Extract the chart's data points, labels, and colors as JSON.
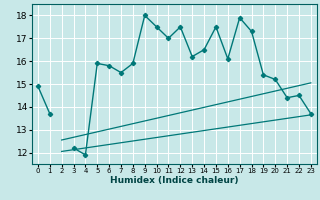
{
  "title": "",
  "xlabel": "Humidex (Indice chaleur)",
  "bg_color": "#c8e8e8",
  "line_color": "#007878",
  "grid_color": "#b0d8d8",
  "xlim": [
    -0.5,
    23.5
  ],
  "ylim": [
    11.5,
    18.5
  ],
  "xticks": [
    0,
    1,
    2,
    3,
    4,
    5,
    6,
    7,
    8,
    9,
    10,
    11,
    12,
    13,
    14,
    15,
    16,
    17,
    18,
    19,
    20,
    21,
    22,
    23
  ],
  "yticks": [
    12,
    13,
    14,
    15,
    16,
    17,
    18
  ],
  "main_y": [
    14.9,
    13.7,
    null,
    12.2,
    11.9,
    15.9,
    15.8,
    15.5,
    15.9,
    18.0,
    17.5,
    17.0,
    17.5,
    16.2,
    16.5,
    17.5,
    16.1,
    17.9,
    17.3,
    15.4,
    15.2,
    14.4,
    14.5,
    13.7
  ],
  "line1_x": [
    2,
    23
  ],
  "line1_y": [
    12.05,
    13.65
  ],
  "line2_x": [
    2,
    23
  ],
  "line2_y": [
    12.55,
    15.05
  ]
}
